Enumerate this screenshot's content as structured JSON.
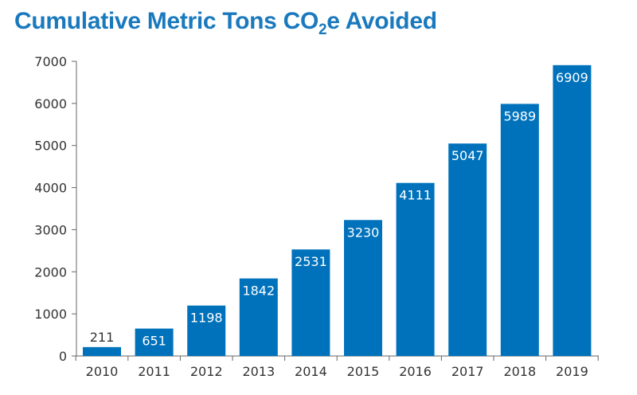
{
  "title": {
    "prefix": "Cumulative Metric Tons CO",
    "subscript": "2",
    "suffix": "e Avoided"
  },
  "colors": {
    "bar": "#0072bc",
    "title": "#1a79bd",
    "axis": "#666666",
    "label_on_bar": "#ffffff",
    "label_above_bar": "#333333"
  },
  "chart_data": {
    "type": "bar",
    "title": "Cumulative Metric Tons CO2e Avoided",
    "xlabel": "",
    "ylabel": "",
    "categories": [
      "2010",
      "2011",
      "2012",
      "2013",
      "2014",
      "2015",
      "2016",
      "2017",
      "2018",
      "2019"
    ],
    "values": [
      211,
      651,
      1198,
      1842,
      2531,
      3230,
      4111,
      5047,
      5989,
      6909
    ],
    "ylim": [
      0,
      7000
    ],
    "yticks": [
      0,
      1000,
      2000,
      3000,
      4000,
      5000,
      6000,
      7000
    ],
    "grid": false,
    "legend": "none"
  }
}
